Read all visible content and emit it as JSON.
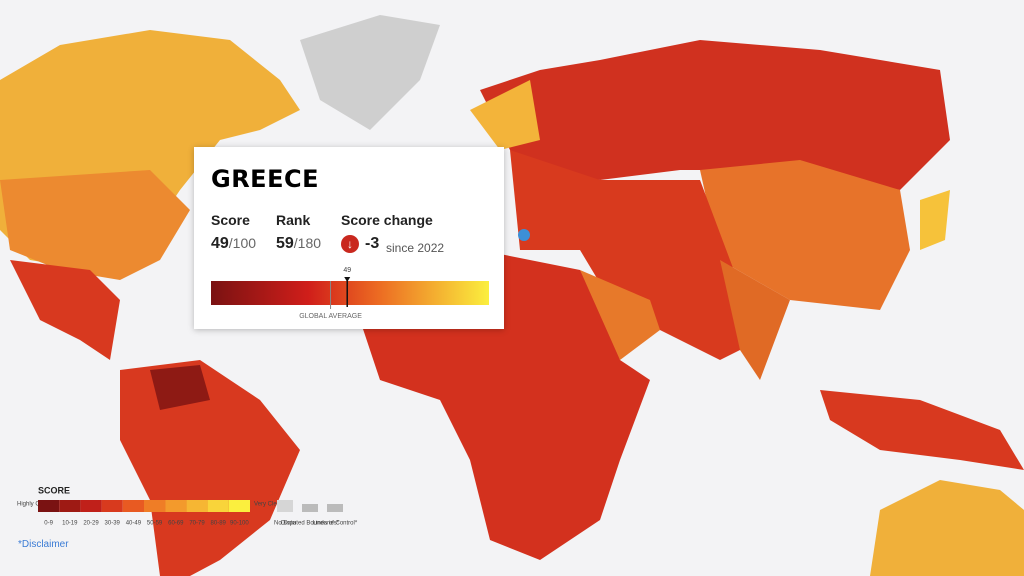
{
  "tooltip": {
    "country": "GREECE",
    "score": {
      "label": "Score",
      "value": 49,
      "max": "/100"
    },
    "rank": {
      "label": "Rank",
      "value": 59,
      "max": "/180"
    },
    "score_change": {
      "label": "Score change",
      "value": -3,
      "since": "since 2022"
    },
    "scale": {
      "xlim": [
        0,
        100
      ],
      "marker": 49,
      "global_average": {
        "value": 43,
        "label": "GLOBAL AVERAGE"
      }
    }
  },
  "legend": {
    "title": "SCORE",
    "low": "Highly Corrupt",
    "high": "Very Clean",
    "ranges": [
      {
        "label": "0-9",
        "color": "#7a1212"
      },
      {
        "label": "10-19",
        "color": "#9e1a14"
      },
      {
        "label": "20-29",
        "color": "#c0201a"
      },
      {
        "label": "30-39",
        "color": "#d83a1e"
      },
      {
        "label": "40-49",
        "color": "#e85a22"
      },
      {
        "label": "50-59",
        "color": "#ef7d26"
      },
      {
        "label": "60-69",
        "color": "#f39a2c"
      },
      {
        "label": "70-79",
        "color": "#f6b633"
      },
      {
        "label": "80-89",
        "color": "#f9d43a"
      },
      {
        "label": "90-100",
        "color": "#fbef3e"
      }
    ],
    "no_data": "No Data",
    "disputed": "Disputed Boundaries*",
    "lines": "Lines of Control*"
  },
  "disclaimer": "*Disclaimer"
}
